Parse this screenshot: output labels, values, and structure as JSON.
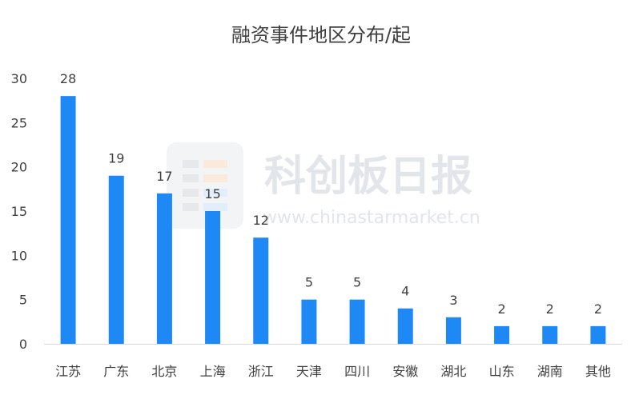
{
  "chart_data": {
    "type": "bar",
    "title": "融资事件地区分布/起",
    "categories": [
      "江苏",
      "广东",
      "北京",
      "上海",
      "浙江",
      "天津",
      "四川",
      "安徽",
      "湖北",
      "山东",
      "湖南",
      "其他"
    ],
    "values": [
      28,
      19,
      17,
      15,
      12,
      5,
      5,
      4,
      3,
      2,
      2,
      2
    ],
    "ylim": [
      0,
      30
    ],
    "yticks": [
      0,
      5,
      10,
      15,
      20,
      25,
      30
    ],
    "grid": false,
    "bar_color": "#1E88F5"
  },
  "watermark": {
    "name": "科创板日报",
    "url": "www.chinastarmarket.cn"
  }
}
